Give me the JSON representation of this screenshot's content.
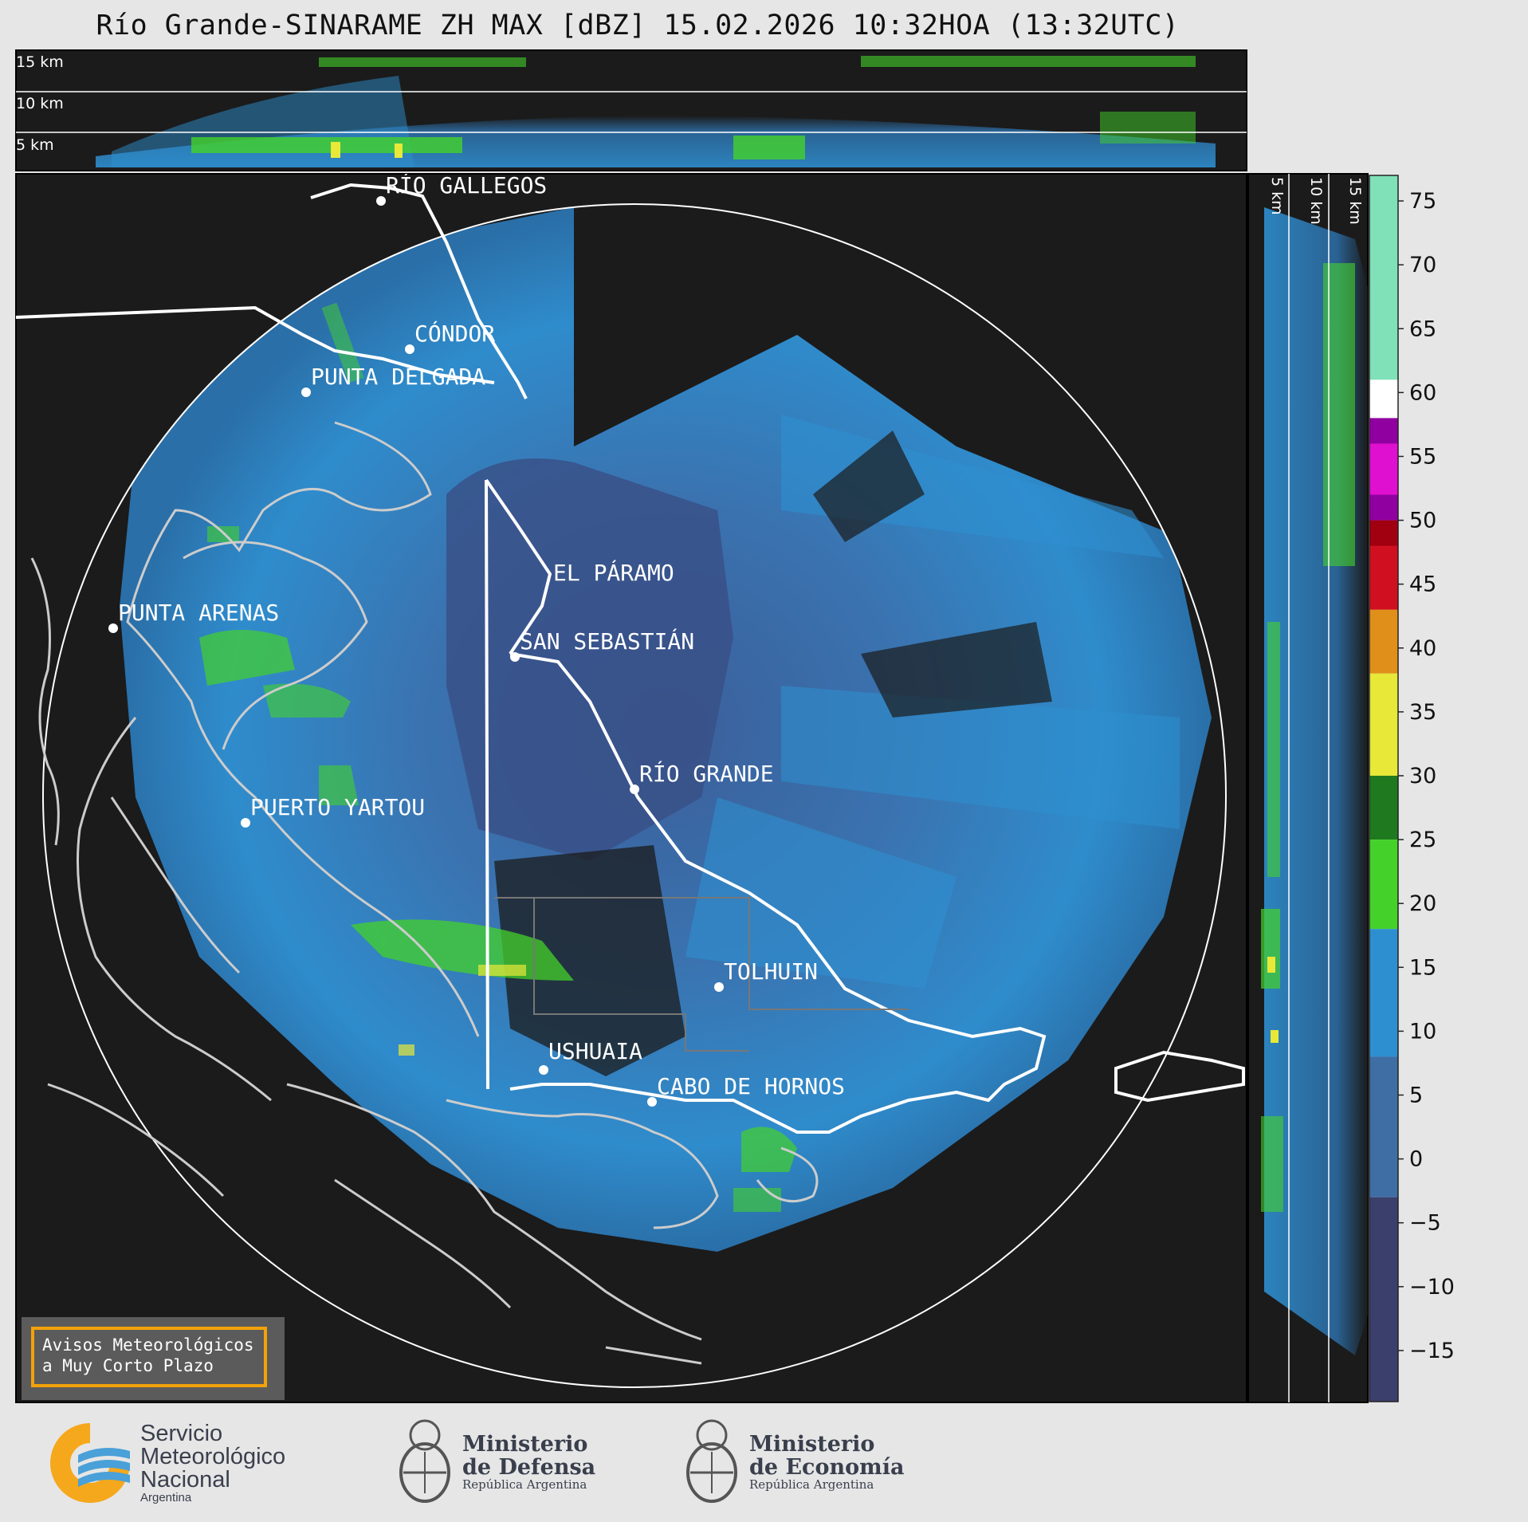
{
  "title": "Río Grande-SINARAME ZH MAX [dBZ] 15.02.2026 10:32HOA (13:32UTC)",
  "top_panel_km": [
    "15 km",
    "10 km",
    "5 km"
  ],
  "side_panel_km": [
    "5 km",
    "10 km",
    "15 km"
  ],
  "cities": [
    {
      "name": "RÍO GALLEGOS"
    },
    {
      "name": "CÓNDOR"
    },
    {
      "name": "PUNTA DELGADA"
    },
    {
      "name": "PUNTA ARENAS"
    },
    {
      "name": "EL PÁRAMO"
    },
    {
      "name": "SAN SEBASTIÁN"
    },
    {
      "name": "RÍO GRANDE"
    },
    {
      "name": "PUERTO YARTOU"
    },
    {
      "name": "TOLHUIN"
    },
    {
      "name": "USHUAIA"
    },
    {
      "name": "CABO DE HORNOS"
    }
  ],
  "colorbar": {
    "unit": "dBZ",
    "ticks": [
      "75",
      "70",
      "65",
      "60",
      "55",
      "50",
      "45",
      "40",
      "35",
      "30",
      "25",
      "20",
      "15",
      "10",
      "5",
      "0",
      "−5",
      "−10",
      "−15"
    ],
    "colors": {
      "neg": "#3b3f6b",
      "low": "#3f6ea5",
      "mid": "#2e8fd0",
      "green": "#44d22a",
      "darkgreen": "#1f7a1f",
      "yellow": "#e8e838",
      "orange": "#e0901a",
      "red": "#d01020",
      "darkred": "#a00010",
      "magenta": "#e010d0",
      "purple": "#9000a0",
      "white": "#ffffff",
      "mint": "#80e0b8"
    }
  },
  "alert": {
    "line1": "Avisos Meteorológicos",
    "line2": "a Muy Corto Plazo"
  },
  "footer": {
    "smn": {
      "line1": "Servicio",
      "line2": "Meteorológico",
      "line3": "Nacional",
      "line4": "Argentina"
    },
    "defensa": {
      "line1": "Ministerio",
      "line2": "de Defensa",
      "line3": "República Argentina"
    },
    "economia": {
      "line1": "Ministerio",
      "line2": "de Economía",
      "line3": "República Argentina"
    }
  }
}
